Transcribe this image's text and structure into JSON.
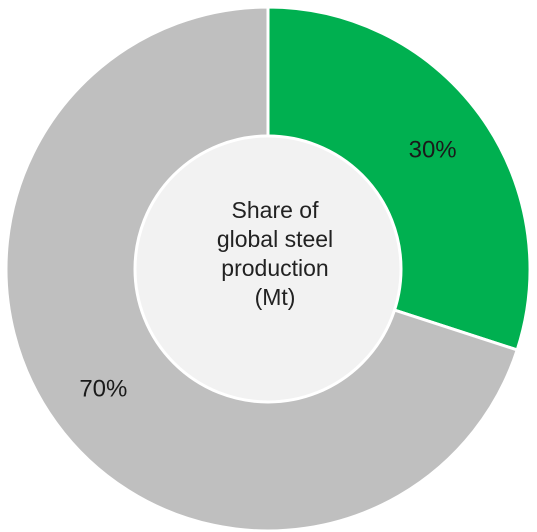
{
  "chart_data": {
    "type": "pie",
    "hole": true,
    "title": "",
    "center_label_lines": [
      "Share of",
      "global steel",
      "production",
      "(Mt)"
    ],
    "slices": [
      {
        "label": "30%",
        "value": 30,
        "color": "#00b050"
      },
      {
        "label": "70%",
        "value": 70,
        "color": "#bfbfbf"
      }
    ],
    "center_fill": "#f2f2f2",
    "legend": "none"
  }
}
